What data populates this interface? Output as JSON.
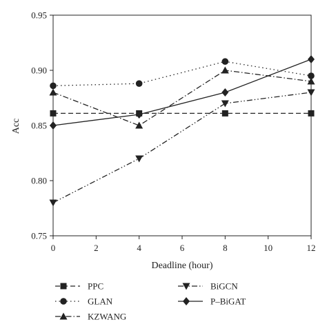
{
  "chart_data": {
    "type": "line",
    "title": "",
    "xlabel": "Deadline (hour)",
    "ylabel": "Acc",
    "x": [
      0,
      4,
      8,
      12
    ],
    "xlim": [
      0,
      12
    ],
    "ylim": [
      0.75,
      0.95
    ],
    "xticks": [
      0,
      2,
      4,
      6,
      8,
      10,
      12
    ],
    "yticks": [
      0.75,
      0.8,
      0.85,
      0.9,
      0.95
    ],
    "xtick_labels": [
      "0",
      "2",
      "4",
      "6",
      "8",
      "10",
      "12"
    ],
    "ytick_labels": [
      "0.75",
      "0.80",
      "0.85",
      "0.90",
      "0.95"
    ],
    "grid": false,
    "legend_position": "bottom",
    "series": [
      {
        "name": "PPC",
        "values": [
          0.861,
          0.861,
          0.861,
          0.861
        ],
        "marker": "square",
        "dash": "dashed",
        "color": "#222222"
      },
      {
        "name": "GLAN",
        "values": [
          0.886,
          0.888,
          0.908,
          0.895
        ],
        "marker": "circle",
        "dash": "dotted",
        "color": "#222222"
      },
      {
        "name": "KZWANG",
        "values": [
          0.88,
          0.85,
          0.9,
          0.89
        ],
        "marker": "triangle-up",
        "dash": "dash-dot",
        "color": "#222222"
      },
      {
        "name": "BiGCN",
        "values": [
          0.78,
          0.82,
          0.87,
          0.88
        ],
        "marker": "triangle-down",
        "dash": "dash-dot-dot",
        "color": "#222222"
      },
      {
        "name": "P–BiGAT",
        "values": [
          0.85,
          0.86,
          0.88,
          0.91
        ],
        "marker": "diamond",
        "dash": "solid",
        "color": "#222222"
      }
    ]
  }
}
